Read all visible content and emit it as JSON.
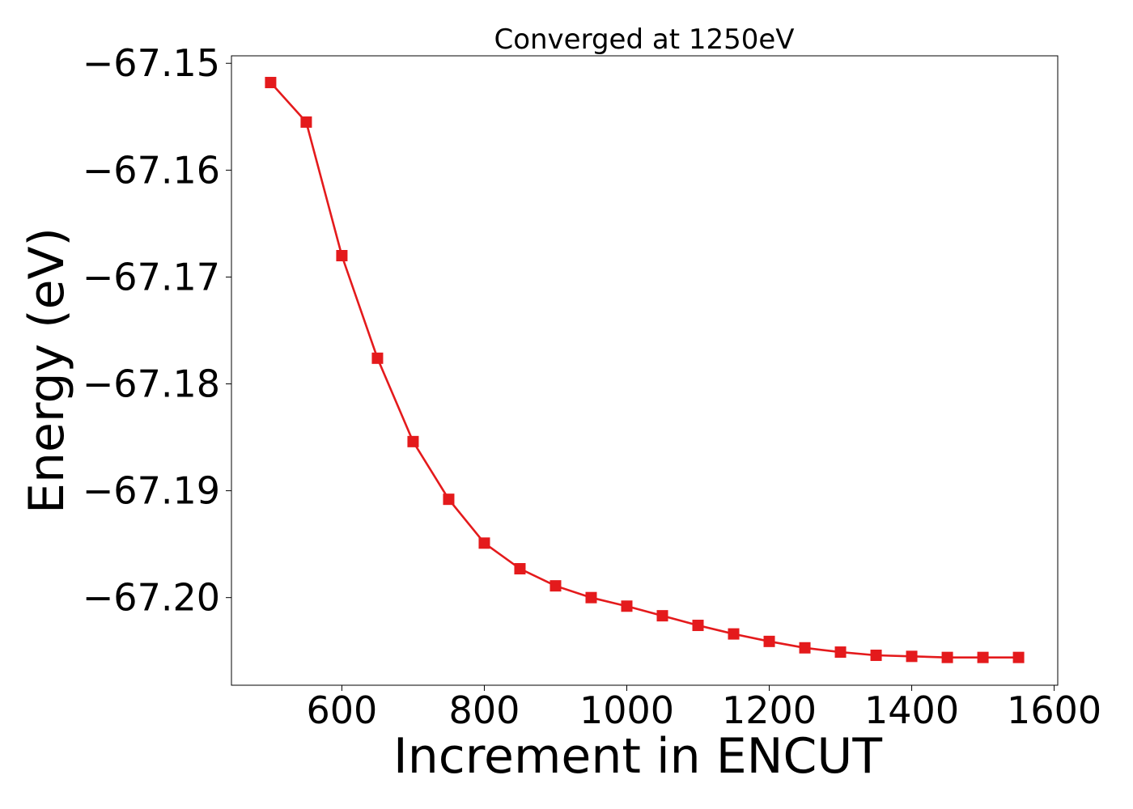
{
  "chart_data": {
    "type": "line",
    "title": "Converged at 1250eV",
    "xlabel": "Increment in ENCUT",
    "ylabel": "Energy (eV)",
    "xlim": [
      445,
      1605
    ],
    "ylim": [
      -67.2082,
      -67.1493
    ],
    "xticks": [
      600,
      800,
      1000,
      1200,
      1400,
      1600
    ],
    "xtick_labels": [
      "600",
      "800",
      "1000",
      "1200",
      "1400",
      "1600"
    ],
    "yticks": [
      -67.15,
      -67.16,
      -67.17,
      -67.18,
      -67.19,
      -67.2
    ],
    "ytick_labels": [
      "−67.15",
      "−67.16",
      "−67.17",
      "−67.18",
      "−67.19",
      "−67.20"
    ],
    "grid": false,
    "series": [
      {
        "marker": "square",
        "color": "#e41a1c",
        "x": [
          500,
          550,
          600,
          650,
          700,
          750,
          800,
          850,
          900,
          950,
          1000,
          1050,
          1100,
          1150,
          1200,
          1250,
          1300,
          1350,
          1400,
          1450,
          1500,
          1550
        ],
        "y": [
          -67.1518,
          -67.1555,
          -67.168,
          -67.1776,
          -67.1854,
          -67.1908,
          -67.1949,
          -67.1973,
          -67.1989,
          -67.2,
          -67.2008,
          -67.2017,
          -67.2026,
          -67.2034,
          -67.2041,
          -67.2047,
          -67.2051,
          -67.2054,
          -67.2055,
          -67.2056,
          -67.2056,
          -67.2056
        ]
      }
    ]
  }
}
